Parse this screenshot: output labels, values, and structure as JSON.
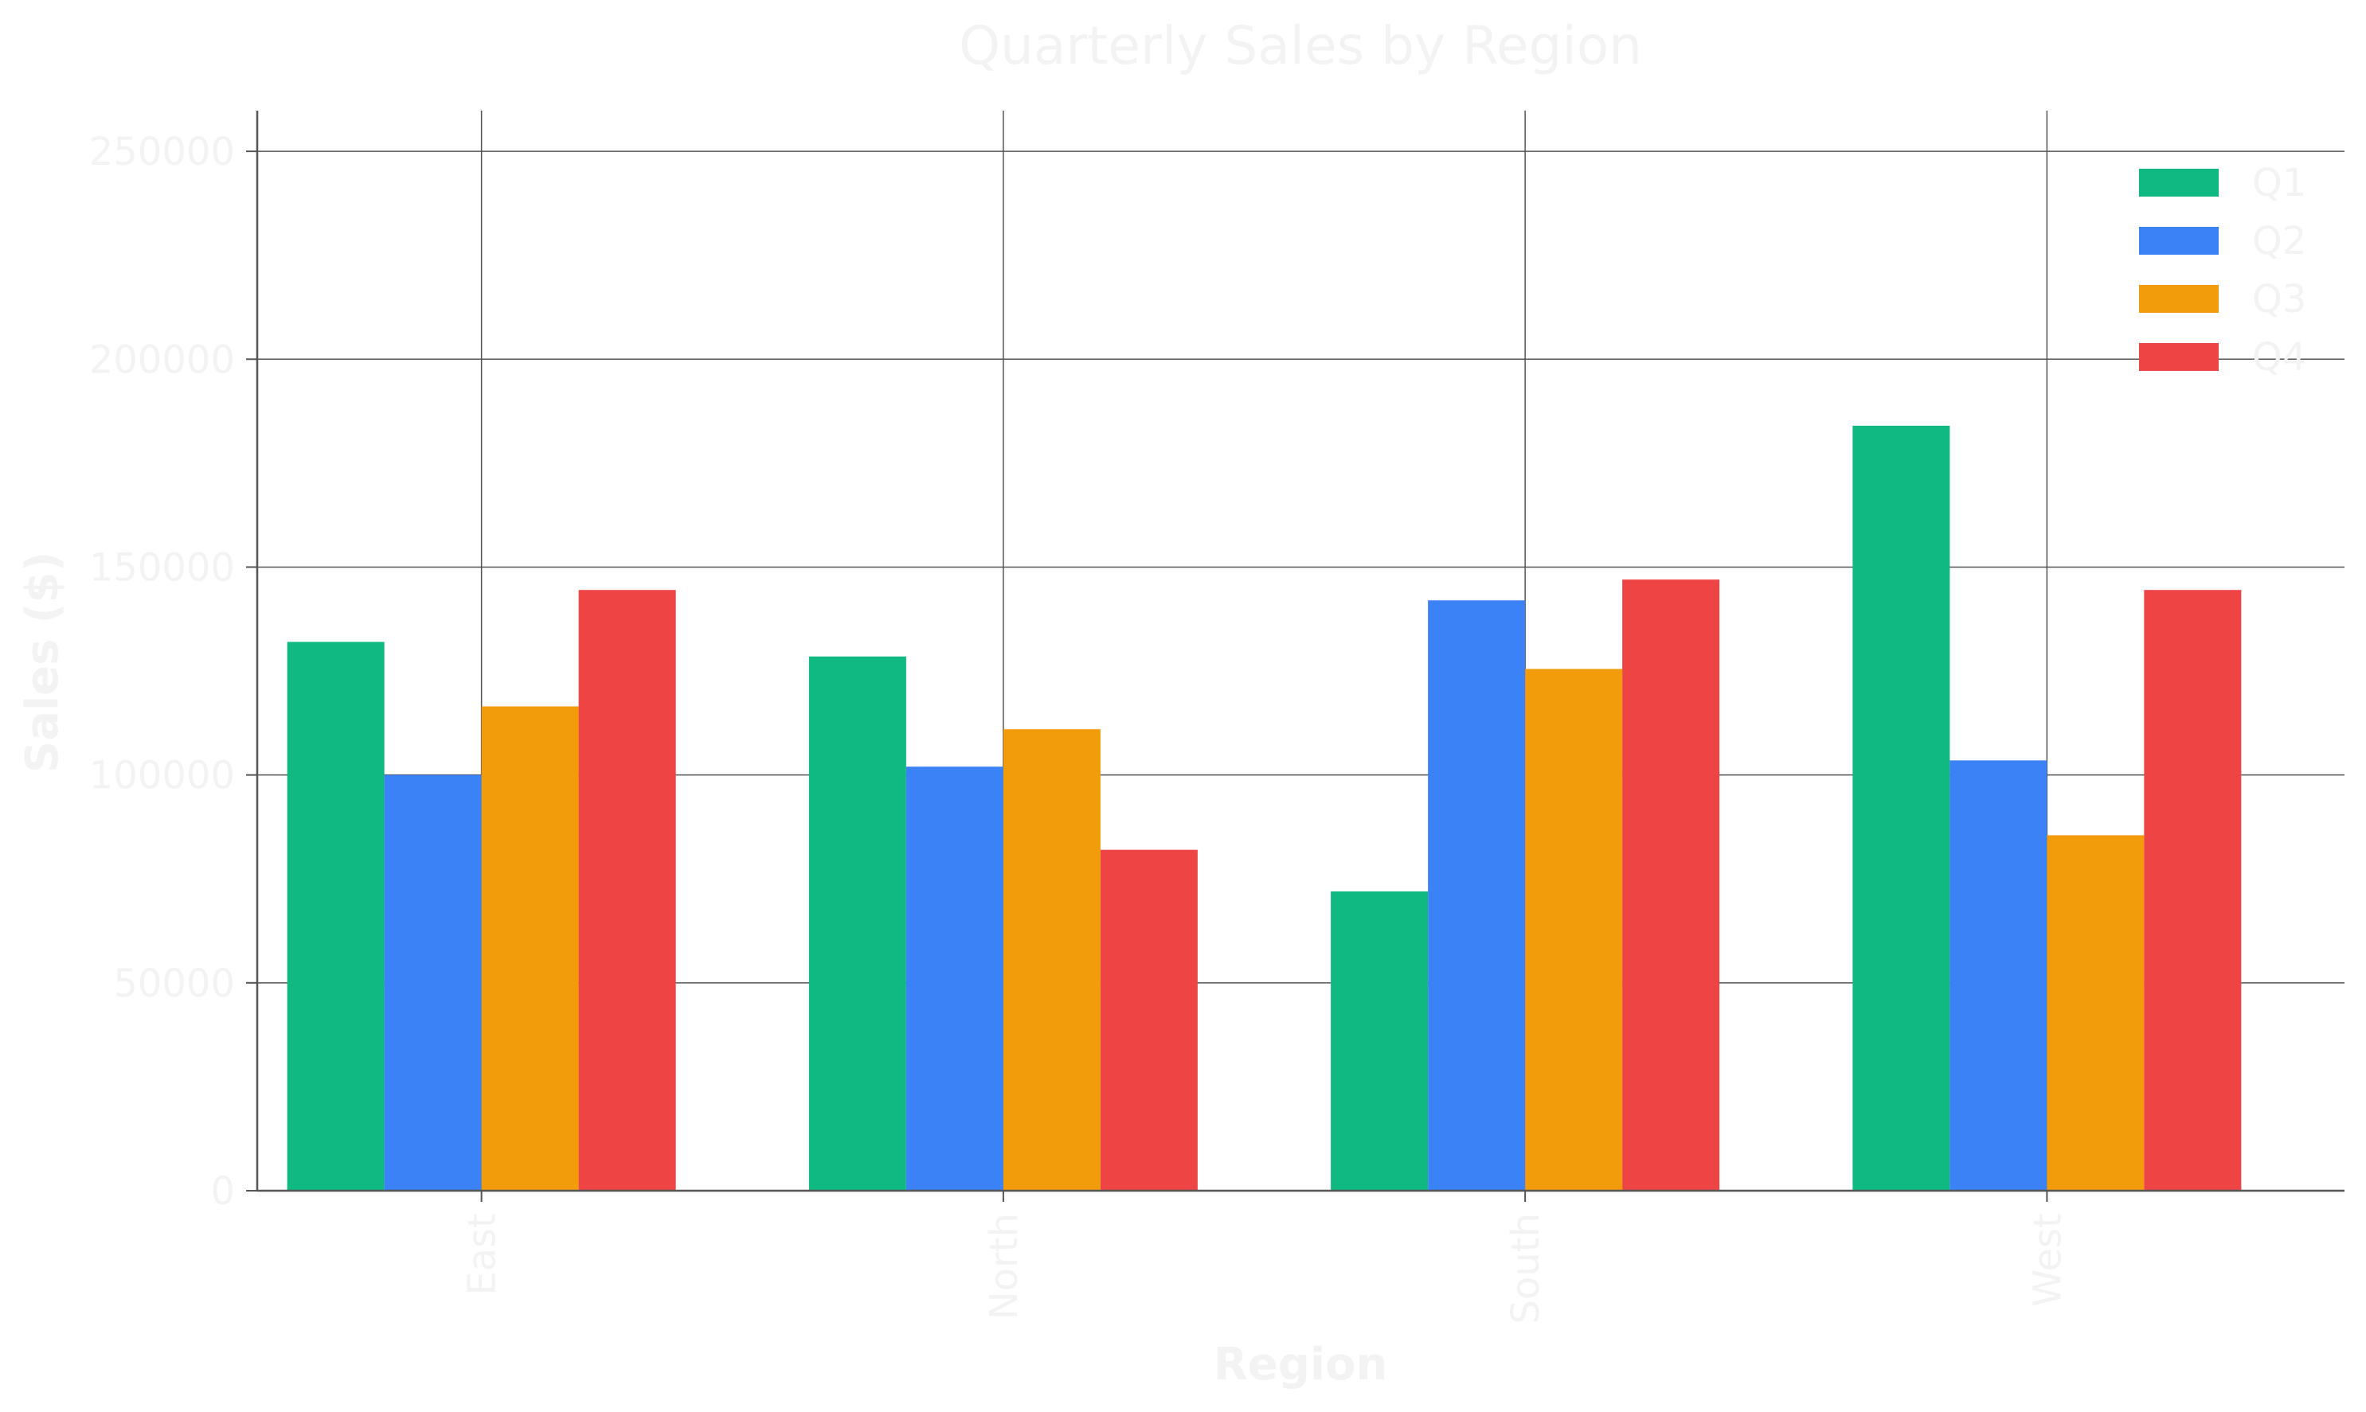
{
  "chart_data": {
    "type": "bar",
    "title": "Quarterly Sales by Region",
    "xlabel": "Region",
    "ylabel": "Sales ($)",
    "categories": [
      "East",
      "North",
      "South",
      "West"
    ],
    "series": [
      {
        "name": "Q1",
        "color": "#10b981",
        "values": [
          132000,
          128500,
          72000,
          184000
        ]
      },
      {
        "name": "Q2",
        "color": "#3b82f6",
        "values": [
          100000,
          102000,
          142000,
          103500
        ]
      },
      {
        "name": "Q3",
        "color": "#f39c0b",
        "values": [
          116500,
          111000,
          125500,
          85500
        ]
      },
      {
        "name": "Q4",
        "color": "#ef4444",
        "values": [
          144500,
          82000,
          147000,
          144500
        ]
      }
    ],
    "ylim": [
      0,
      255000
    ],
    "yticks": [
      0,
      50000,
      100000,
      150000,
      200000,
      250000
    ],
    "ytick_labels": [
      "0",
      "50000",
      "100000",
      "150000",
      "200000",
      "250000"
    ],
    "grid": true,
    "legend_position": "top-right"
  }
}
